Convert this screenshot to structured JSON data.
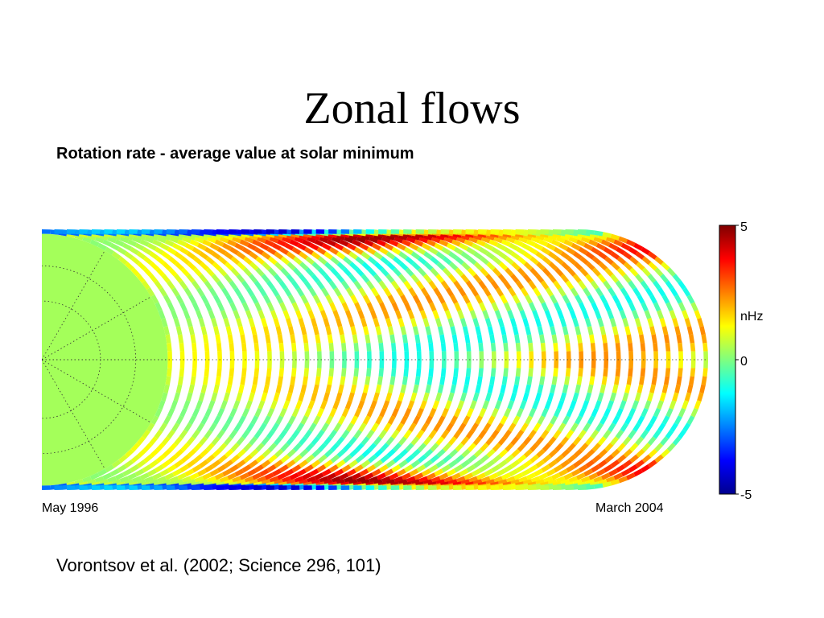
{
  "slide": {
    "title": "Zonal flows",
    "subtitle": "Rotation rate - average value at solar minimum",
    "caption": "Vorontsov et al. (2002; Science 296, 101)"
  },
  "chart_data": {
    "type": "heatmap",
    "title": "",
    "start_label": "May 1996",
    "end_label": "March 2004",
    "colorbar": {
      "min": -5,
      "max": 5,
      "unit": "nHz",
      "ticks": [
        "5",
        "0",
        "-5"
      ],
      "colormap": "jet",
      "colors": [
        "#00008f",
        "#0000ff",
        "#00ffff",
        "#7fff7f",
        "#ffff00",
        "#ff7f00",
        "#ff0000",
        "#7f0000"
      ]
    }
  }
}
